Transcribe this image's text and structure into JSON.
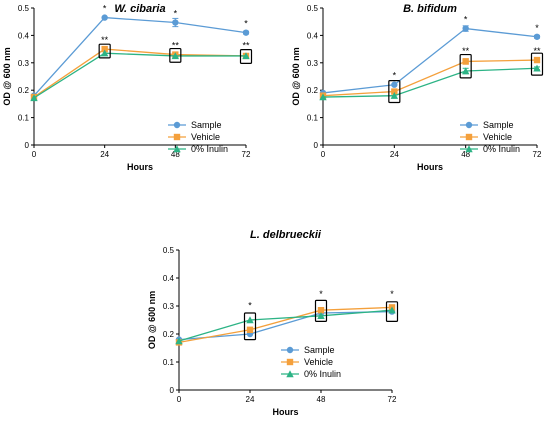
{
  "chart_data": [
    {
      "type": "line",
      "title": "W. cibaria",
      "xlabel": "Hours",
      "ylabel": "OD @ 600 nm",
      "x": [
        0,
        24,
        48,
        72
      ],
      "xticks": [
        "0",
        "24",
        "48",
        "72"
      ],
      "ylim": [
        0,
        0.5
      ],
      "yticks": [
        "0",
        "0.1",
        "0.2",
        "0.3",
        "0.4",
        "0.5"
      ],
      "legend_position": "lower-right",
      "series": [
        {
          "name": "Sample",
          "color": "#5b9bd5",
          "marker": "circle",
          "values": [
            0.18,
            0.465,
            0.447,
            0.41
          ],
          "errors": [
            0,
            0,
            0.015,
            0.005
          ]
        },
        {
          "name": "Vehicle",
          "color": "#f4a03c",
          "marker": "square",
          "values": [
            0.175,
            0.35,
            0.33,
            0.325
          ],
          "errors": [
            0,
            0,
            0,
            0
          ]
        },
        {
          "name": "0% Inulin",
          "color": "#2cb385",
          "marker": "triangle",
          "values": [
            0.172,
            0.335,
            0.325,
            0.325
          ],
          "errors": [
            0,
            0,
            0,
            0
          ]
        }
      ],
      "annotations": [
        {
          "x": 24,
          "y": 0.465,
          "text": "*"
        },
        {
          "x": 24,
          "y": 0.35,
          "text": "**"
        },
        {
          "x": 48,
          "y": 0.447,
          "text": "*"
        },
        {
          "x": 48,
          "y": 0.33,
          "text": "**"
        },
        {
          "x": 72,
          "y": 0.41,
          "text": "*"
        },
        {
          "x": 72,
          "y": 0.33,
          "text": "**"
        }
      ],
      "boxes": [
        {
          "x": 24,
          "ymin": 0.318,
          "ymax": 0.368
        },
        {
          "x": 48,
          "ymin": 0.302,
          "ymax": 0.352
        },
        {
          "x": 72,
          "ymin": 0.298,
          "ymax": 0.348
        }
      ]
    },
    {
      "type": "line",
      "title": "B. bifidum",
      "xlabel": "Hours",
      "ylabel": "OD @ 600 nm",
      "x": [
        0,
        24,
        48,
        72
      ],
      "xticks": [
        "0",
        "24",
        "48",
        "72"
      ],
      "ylim": [
        0,
        0.5
      ],
      "yticks": [
        "0",
        "0.1",
        "0.2",
        "0.3",
        "0.4",
        "0.5"
      ],
      "legend_position": "lower-right",
      "series": [
        {
          "name": "Sample",
          "color": "#5b9bd5",
          "marker": "circle",
          "values": [
            0.19,
            0.22,
            0.425,
            0.395
          ],
          "errors": [
            0,
            0,
            0.01,
            0.005
          ]
        },
        {
          "name": "Vehicle",
          "color": "#f4a03c",
          "marker": "square",
          "values": [
            0.18,
            0.195,
            0.305,
            0.31
          ],
          "errors": [
            0,
            0,
            0.01,
            0.005
          ]
        },
        {
          "name": "0% Inulin",
          "color": "#2cb385",
          "marker": "triangle",
          "values": [
            0.175,
            0.18,
            0.27,
            0.28
          ],
          "errors": [
            0,
            0,
            0.01,
            0.005
          ]
        }
      ],
      "annotations": [
        {
          "x": 24,
          "y": 0.22,
          "text": "*"
        },
        {
          "x": 48,
          "y": 0.425,
          "text": "*"
        },
        {
          "x": 48,
          "y": 0.31,
          "text": "**"
        },
        {
          "x": 72,
          "y": 0.395,
          "text": "*"
        },
        {
          "x": 72,
          "y": 0.31,
          "text": "**"
        }
      ],
      "boxes": [
        {
          "x": 24,
          "ymin": 0.155,
          "ymax": 0.235
        },
        {
          "x": 48,
          "ymin": 0.245,
          "ymax": 0.33
        },
        {
          "x": 72,
          "ymin": 0.255,
          "ymax": 0.335
        }
      ]
    },
    {
      "type": "line",
      "title": "L. delbrueckii",
      "xlabel": "Hours",
      "ylabel": "OD @ 600 nm",
      "x": [
        0,
        24,
        48,
        72
      ],
      "xticks": [
        "0",
        "24",
        "48",
        "72"
      ],
      "ylim": [
        0,
        0.5
      ],
      "yticks": [
        "0",
        "0.1",
        "0.2",
        "0.3",
        "0.4",
        "0.5"
      ],
      "legend_position": "lower-right",
      "series": [
        {
          "name": "Sample",
          "color": "#5b9bd5",
          "marker": "circle",
          "values": [
            0.18,
            0.2,
            0.275,
            0.28
          ],
          "errors": [
            0,
            0,
            0,
            0
          ]
        },
        {
          "name": "Vehicle",
          "color": "#f4a03c",
          "marker": "square",
          "values": [
            0.17,
            0.215,
            0.285,
            0.295
          ],
          "errors": [
            0,
            0,
            0,
            0
          ]
        },
        {
          "name": "0% Inulin",
          "color": "#2cb385",
          "marker": "triangle",
          "values": [
            0.175,
            0.25,
            0.265,
            0.285
          ],
          "errors": [
            0,
            0,
            0,
            0
          ]
        }
      ],
      "annotations": [
        {
          "x": 24,
          "y": 0.27,
          "text": "*"
        },
        {
          "x": 48,
          "y": 0.31,
          "text": "*"
        },
        {
          "x": 72,
          "y": 0.31,
          "text": "*"
        }
      ],
      "boxes": [
        {
          "x": 24,
          "ymin": 0.18,
          "ymax": 0.275
        },
        {
          "x": 48,
          "ymin": 0.245,
          "ymax": 0.32
        },
        {
          "x": 72,
          "ymin": 0.245,
          "ymax": 0.315
        }
      ]
    }
  ]
}
